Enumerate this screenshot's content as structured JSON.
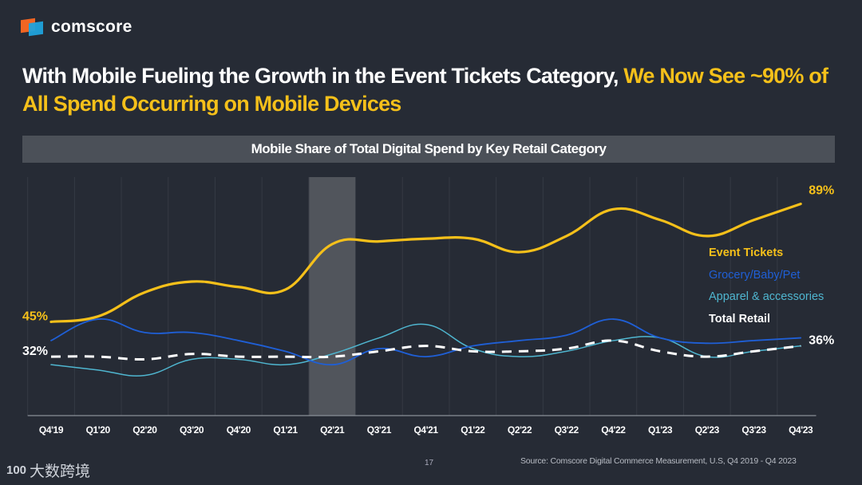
{
  "brand": {
    "name": "comscore"
  },
  "title": {
    "part1": "With Mobile Fueling the Growth in the Event Tickets Category, ",
    "part2": "We Now See ~90% of All Spend Occurring on Mobile Devices"
  },
  "colors": {
    "event": "#f5c01a",
    "grocery": "#1f5fd6",
    "apparel": "#4fb6d0",
    "total": "#ffffff",
    "highlight": "#51555c"
  },
  "chart_data": {
    "type": "line",
    "title": "Mobile Share of Total Digital Spend by Key Retail Category",
    "xlabel": "",
    "ylabel": "",
    "ylim": [
      10,
      99
    ],
    "grid": "vertical",
    "highlight_category": "Q2'21",
    "legend_position": "right",
    "categories": [
      "Q4'19",
      "Q1'20",
      "Q2'20",
      "Q3'20",
      "Q4'20",
      "Q1'21",
      "Q2'21",
      "Q3'21",
      "Q4'21",
      "Q1'22",
      "Q2'22",
      "Q3'22",
      "Q4'22",
      "Q1'23",
      "Q2'23",
      "Q3'23",
      "Q4'23"
    ],
    "series": [
      {
        "name": "Event Tickets",
        "key": "event",
        "dashed": false,
        "values": [
          45,
          47,
          56,
          60,
          58,
          57,
          74,
          75,
          76,
          76,
          71,
          77,
          87,
          83,
          77,
          83,
          89
        ]
      },
      {
        "name": "Grocery/Baby/Pet",
        "key": "grocery",
        "dashed": false,
        "values": [
          38,
          46,
          41,
          41,
          38,
          34,
          29,
          35,
          32,
          36,
          38,
          40,
          46,
          39,
          37,
          38,
          39
        ]
      },
      {
        "name": "Apparel & accessories",
        "key": "apparel",
        "dashed": false,
        "values": [
          29,
          27,
          25,
          31,
          31,
          29,
          33,
          39,
          44,
          35,
          32,
          34,
          38,
          39,
          32,
          34,
          36
        ]
      },
      {
        "name": "Total Retail",
        "key": "total",
        "dashed": true,
        "values": [
          32,
          32,
          31,
          33,
          32,
          32,
          32,
          34,
          36,
          34,
          34,
          35,
          38,
          34,
          32,
          34,
          36
        ]
      }
    ],
    "annotations": [
      {
        "text": "45%",
        "series": "event",
        "at": "Q4'19"
      },
      {
        "text": "32%",
        "series": "total",
        "at": "Q4'19"
      },
      {
        "text": "89%",
        "series": "event",
        "at": "Q4'23"
      },
      {
        "text": "36%",
        "series": "total",
        "at": "Q4'23"
      }
    ]
  },
  "footer": {
    "page": "17",
    "source": "Source: Comscore Digital Commerce Measurement, U.S, Q4 2019 - Q4 2023",
    "watermark": "大数跨境",
    "watermark_icon": "100"
  }
}
